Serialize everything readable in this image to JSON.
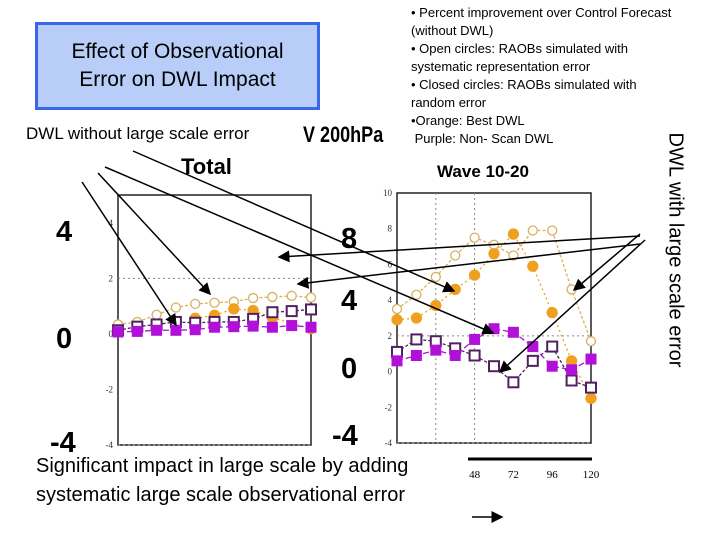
{
  "title": "Effect of Observational\nError on DWL Impact",
  "notes": [
    "•  Percent improvement over Control   Forecast",
    "(without DWL)",
    "•  Open circles: RAOBs simulated with",
    "systematic representation error",
    "•  Closed circles: RAOBs simulated with",
    "random error",
    "•Orange: Best DWL",
    " Purple: Non- Scan DWL"
  ],
  "left_label": "DWL without large scale error",
  "right_label": "DWL with large scale error",
  "variable_label": "V 200hPa",
  "bottom_text": "Significant impact in large scale by adding systematic large scale observational error",
  "big_labels_left": [
    "4",
    "0",
    "-4"
  ],
  "big_labels_mid": [
    "8",
    "4",
    "0",
    "-4"
  ],
  "colors": {
    "orange": "#f0a020",
    "orange_open": "#d8b060",
    "purple": "#b010d8",
    "purple_open": "#502060",
    "title_bg": "#b8cef8",
    "title_border": "#3a66e8"
  },
  "chart_data": [
    {
      "type": "line",
      "title": "Total",
      "x": [
        0,
        12,
        24,
        36,
        48,
        60,
        72,
        84,
        96,
        108,
        120
      ],
      "ylim": [
        -4,
        5
      ],
      "yticks": [
        "-4",
        "-2",
        "0",
        "2",
        "4"
      ],
      "grid": "dotted at 2 and -4",
      "series": [
        {
          "key": "orange_open",
          "values": [
            0.34,
            0.43,
            0.69,
            0.95,
            1.08,
            1.12,
            1.16,
            1.29,
            1.33,
            1.37,
            1.31
          ]
        },
        {
          "key": "orange_filled",
          "values": [
            null,
            null,
            null,
            null,
            0.56,
            0.67,
            0.9,
            0.84,
            0.58,
            null,
            0.19
          ]
        },
        {
          "key": "purple_open",
          "values": [
            0.13,
            0.26,
            0.34,
            0.43,
            0.4,
            0.43,
            0.43,
            0.54,
            0.78,
            0.82,
            0.88
          ]
        },
        {
          "key": "purple_filled",
          "values": [
            0.07,
            0.09,
            0.13,
            0.13,
            0.15,
            0.24,
            0.26,
            0.28,
            0.24,
            0.3,
            0.24
          ]
        }
      ]
    },
    {
      "type": "line",
      "title": "Wave 10-20",
      "x": [
        0,
        12,
        24,
        36,
        48,
        60,
        72,
        84,
        96,
        108,
        120
      ],
      "xlim": [
        0,
        120
      ],
      "ylim": [
        -4,
        10
      ],
      "yticks": [
        "-4",
        "-2",
        "0",
        "2",
        "4",
        "6",
        "8",
        "10"
      ],
      "xticks": [
        "48",
        "72",
        "96",
        "120"
      ],
      "grid": "dotted",
      "series": [
        {
          "key": "orange_open",
          "values": [
            3.5,
            4.3,
            5.3,
            6.5,
            7.5,
            7.1,
            6.5,
            7.9,
            7.9,
            4.6,
            1.7
          ]
        },
        {
          "key": "orange_filled",
          "values": [
            2.9,
            3.0,
            3.7,
            4.6,
            5.4,
            6.6,
            7.7,
            5.9,
            3.3,
            0.6,
            -1.5
          ]
        },
        {
          "key": "purple_open",
          "values": [
            1.1,
            1.8,
            1.7,
            1.3,
            0.9,
            0.3,
            -0.6,
            0.6,
            1.4,
            -0.5,
            -0.9
          ]
        },
        {
          "key": "purple_filled",
          "values": [
            0.6,
            0.9,
            1.2,
            0.9,
            1.8,
            2.4,
            2.2,
            1.4,
            0.3,
            0.1,
            0.7
          ]
        }
      ]
    }
  ]
}
